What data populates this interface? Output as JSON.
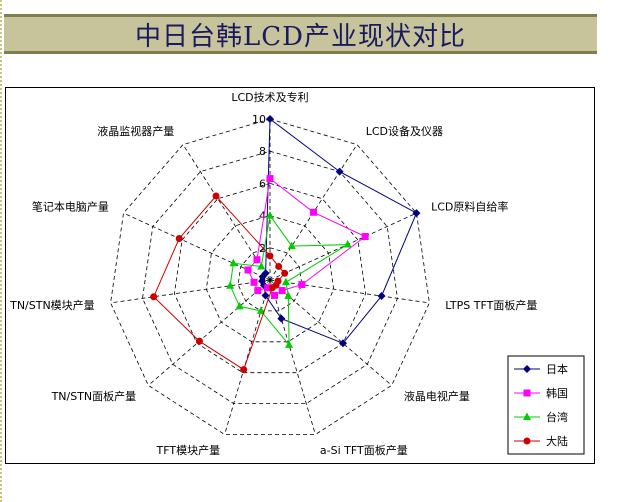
{
  "title": "中日台韩LCD产业现状对比",
  "chart_data": {
    "type": "radar",
    "axes": [
      "LCD技术及专利",
      "LCD设备及仪器",
      "LCD原料自给率",
      "LTPS TFT面板产量",
      "液晶电视产量",
      "a-Si TFT面板产量",
      "TFT模块产量",
      "TN/STN面板产量",
      "TN/STN模块产量",
      "笔记本电脑产量",
      "液晶监视器产量"
    ],
    "ticks": [
      "0",
      "2",
      "4",
      "6",
      "8",
      "10"
    ],
    "range": [
      0,
      10
    ],
    "grid": true,
    "legend_position": "bottom-right",
    "series": [
      {
        "name": "日本",
        "color": "#000080",
        "marker": "diamond",
        "values": [
          10,
          8,
          10,
          7,
          6,
          2.5,
          1,
          0.5,
          0.5,
          0.5,
          0.5
        ]
      },
      {
        "name": "韩国",
        "color": "#ff00ff",
        "marker": "square",
        "values": [
          6.3,
          5,
          6.5,
          2,
          1,
          1,
          0.5,
          1,
          1,
          1.5,
          1.5
        ]
      },
      {
        "name": "台湾",
        "color": "#00cc00",
        "marker": "triangle",
        "values": [
          4,
          2.5,
          5.3,
          1,
          1.5,
          4.2,
          2,
          2.5,
          2.5,
          2.5,
          1
        ]
      },
      {
        "name": "大陆",
        "color": "#cc0000",
        "marker": "circle",
        "values": [
          1.5,
          1,
          1,
          0.5,
          0.5,
          0.5,
          5.8,
          5.8,
          7.3,
          6.2,
          6.2
        ]
      }
    ]
  }
}
